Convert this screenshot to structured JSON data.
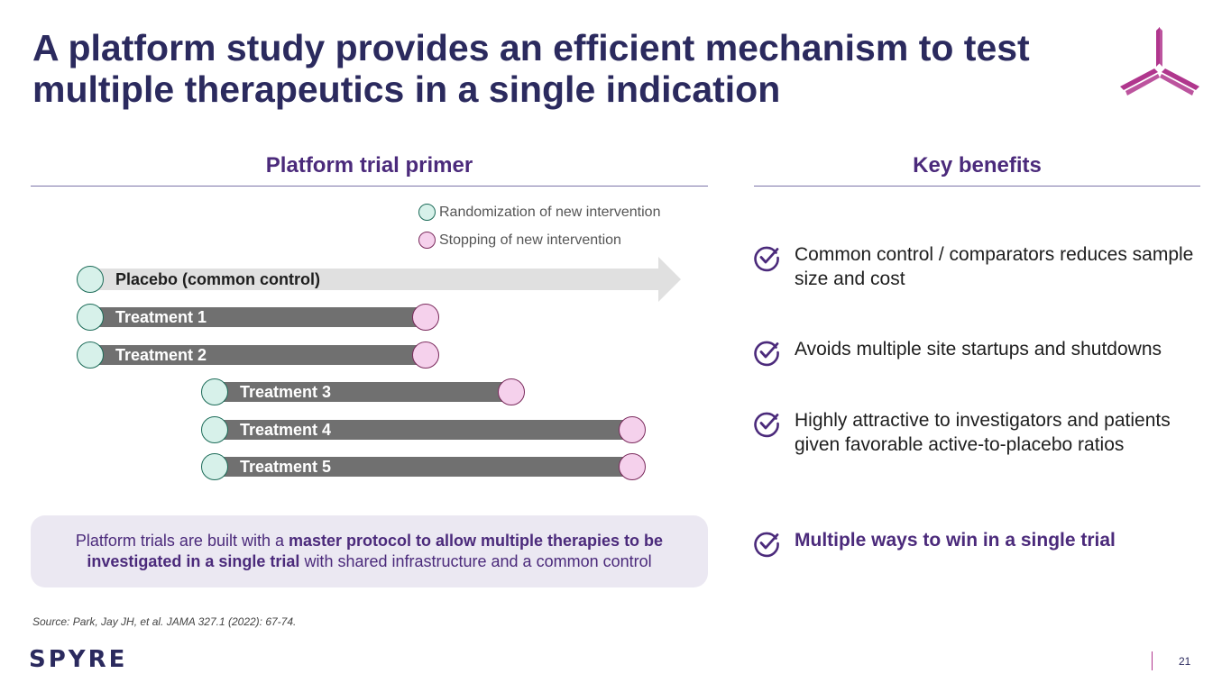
{
  "slide": {
    "title_line1": "A platform study provides an efficient mechanism to test",
    "title_line2": "multiple therapeutics in a single indication",
    "page_number": "21",
    "source": "Source: Park, Jay JH, et al. JAMA 327.1 (2022): 67-74.",
    "brand": "SPYRE",
    "logo": "tri-blade-logo-icon"
  },
  "primer": {
    "heading": "Platform trial primer",
    "legend": {
      "randomization": "Randomization of new intervention",
      "stopping": "Stopping of new intervention"
    },
    "placebo_label": "Placebo (common control)",
    "treatments": [
      {
        "label": "Treatment 1"
      },
      {
        "label": "Treatment 2"
      },
      {
        "label": "Treatment 3"
      },
      {
        "label": "Treatment 4"
      },
      {
        "label": "Treatment 5"
      }
    ],
    "callout": {
      "prefix": "Platform trials are built with a ",
      "bold": "master protocol to allow multiple therapies to be investigated in a single trial",
      "suffix": " with shared infrastructure and a common control"
    }
  },
  "benefits": {
    "heading": "Key benefits",
    "items": [
      {
        "text": "Common control / comparators reduces sample size and cost"
      },
      {
        "text": "Avoids multiple site startups and shutdowns"
      },
      {
        "text": "Highly attractive to investigators and patients given favorable active-to-placebo ratios"
      },
      {
        "text": "Multiple ways to win in a single trial"
      }
    ]
  },
  "colors": {
    "title": "#2b2a5e",
    "accent_purple": "#4b2a7b",
    "magenta": "#b0368d",
    "bar_gray": "#707070",
    "arrow_gray": "#e0e0e0",
    "green_fill": "#d7f1ea",
    "pink_fill": "#f5d1ec"
  }
}
